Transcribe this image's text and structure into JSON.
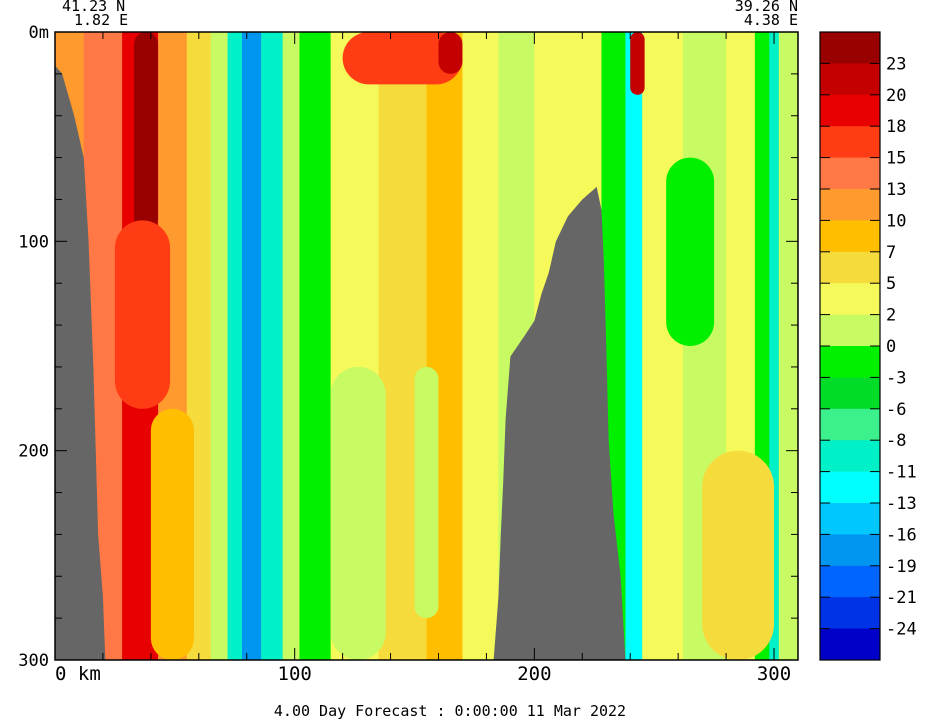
{
  "chart_data": {
    "type": "heatmap",
    "title": "",
    "xlabel": "",
    "ylabel": "",
    "corner_labels": {
      "left_lat": "41.23 N",
      "left_lon": "1.82 E",
      "right_lat": "39.26 N",
      "right_lon": "4.38 E"
    },
    "x_axis": {
      "range": [
        0,
        310
      ],
      "tick_values": [
        0,
        100,
        200,
        300
      ],
      "tick_labels": [
        "0 km",
        "100",
        "200",
        "300"
      ],
      "minor_step": 20
    },
    "y_axis": {
      "range": [
        0,
        300
      ],
      "inverted": true,
      "tick_values": [
        0,
        100,
        200,
        300
      ],
      "tick_labels": [
        "0m",
        "100",
        "200",
        "300"
      ],
      "minor_step": 20
    },
    "colorbar": {
      "labels": [
        "23",
        "20",
        "18",
        "15",
        "13",
        "10",
        "7",
        "5",
        "2",
        "0",
        "-3",
        "-6",
        "-8",
        "-11",
        "-13",
        "-16",
        "-19",
        "-21",
        "-24"
      ],
      "colors": [
        "#990000",
        "#c40000",
        "#e80000",
        "#ff3c14",
        "#ff7845",
        "#ff9a2e",
        "#ffbe00",
        "#f5dc3c",
        "#f5fa5a",
        "#c8fa64",
        "#00f000",
        "#00dc28",
        "#3cf08c",
        "#00f0c8",
        "#00ffff",
        "#00c8ff",
        "#0096f0",
        "#0064ff",
        "#0032e6",
        "#0000c8"
      ]
    },
    "field_columns": [
      {
        "x_start": 0,
        "x_end": 12,
        "value": 10
      },
      {
        "x_start": 12,
        "x_end": 28,
        "value": 13
      },
      {
        "x_start": 28,
        "x_end": 43,
        "value": 18
      },
      {
        "x_start": 43,
        "x_end": 55,
        "value": 10
      },
      {
        "x_start": 55,
        "x_end": 65,
        "value": 5
      },
      {
        "x_start": 65,
        "x_end": 72,
        "value": 0
      },
      {
        "x_start": 72,
        "x_end": 78,
        "value": -11
      },
      {
        "x_start": 78,
        "x_end": 86,
        "value": -18
      },
      {
        "x_start": 86,
        "x_end": 95,
        "value": -11
      },
      {
        "x_start": 95,
        "x_end": 102,
        "value": 0
      },
      {
        "x_start": 102,
        "x_end": 115,
        "value": -3
      },
      {
        "x_start": 115,
        "x_end": 135,
        "value": 2
      },
      {
        "x_start": 135,
        "x_end": 155,
        "value": 5
      },
      {
        "x_start": 155,
        "x_end": 170,
        "value": 8
      },
      {
        "x_start": 170,
        "x_end": 185,
        "value": 2
      },
      {
        "x_start": 185,
        "x_end": 200,
        "value": 0
      },
      {
        "x_start": 200,
        "x_end": 228,
        "value": 2
      },
      {
        "x_start": 228,
        "x_end": 238,
        "value": -3
      },
      {
        "x_start": 238,
        "x_end": 245,
        "value": -13
      },
      {
        "x_start": 245,
        "x_end": 262,
        "value": 2
      },
      {
        "x_start": 262,
        "x_end": 280,
        "value": 0
      },
      {
        "x_start": 280,
        "x_end": 292,
        "value": 2
      },
      {
        "x_start": 292,
        "x_end": 298,
        "value": -3
      },
      {
        "x_start": 298,
        "x_end": 302,
        "value": -11
      },
      {
        "x_start": 302,
        "x_end": 310,
        "value": 0
      }
    ],
    "field_patches": [
      {
        "x0": 33,
        "x1": 43,
        "y0": 0,
        "y1": 95,
        "value": 23
      },
      {
        "x0": 25,
        "x1": 48,
        "y0": 90,
        "y1": 180,
        "value": 15
      },
      {
        "x0": 40,
        "x1": 58,
        "y0": 180,
        "y1": 300,
        "value": 7
      },
      {
        "x0": 120,
        "x1": 170,
        "y0": 0,
        "y1": 25,
        "value": 15
      },
      {
        "x0": 160,
        "x1": 170,
        "y0": 0,
        "y1": 20,
        "value": 20
      },
      {
        "x0": 115,
        "x1": 138,
        "y0": 160,
        "y1": 300,
        "value": 0
      },
      {
        "x0": 150,
        "x1": 160,
        "y0": 160,
        "y1": 280,
        "value": 0
      },
      {
        "x0": 240,
        "x1": 246,
        "y0": 0,
        "y1": 30,
        "value": 20
      },
      {
        "x0": 255,
        "x1": 275,
        "y0": 60,
        "y1": 150,
        "value": -3
      },
      {
        "x0": 270,
        "x1": 300,
        "y0": 200,
        "y1": 300,
        "value": 5
      }
    ],
    "bathymetry": [
      [
        0,
        16
      ],
      [
        3,
        20
      ],
      [
        8,
        40
      ],
      [
        12,
        60
      ],
      [
        14,
        100
      ],
      [
        15,
        130
      ],
      [
        16,
        160
      ],
      [
        17,
        200
      ],
      [
        18,
        240
      ],
      [
        20,
        270
      ],
      [
        21,
        300
      ]
    ],
    "seamount": [
      [
        183,
        300
      ],
      [
        185,
        270
      ],
      [
        186,
        240
      ],
      [
        187,
        215
      ],
      [
        188,
        185
      ],
      [
        190,
        155
      ],
      [
        196,
        145
      ],
      [
        200,
        138
      ],
      [
        203,
        125
      ],
      [
        206,
        115
      ],
      [
        209,
        100
      ],
      [
        214,
        88
      ],
      [
        220,
        80
      ],
      [
        226,
        74
      ],
      [
        228,
        85
      ],
      [
        229,
        110
      ],
      [
        230,
        150
      ],
      [
        231,
        195
      ],
      [
        233,
        230
      ],
      [
        236,
        260
      ],
      [
        238,
        300
      ]
    ],
    "footer": "4.00 Day Forecast :  0:00:00  11 Mar 2022"
  }
}
